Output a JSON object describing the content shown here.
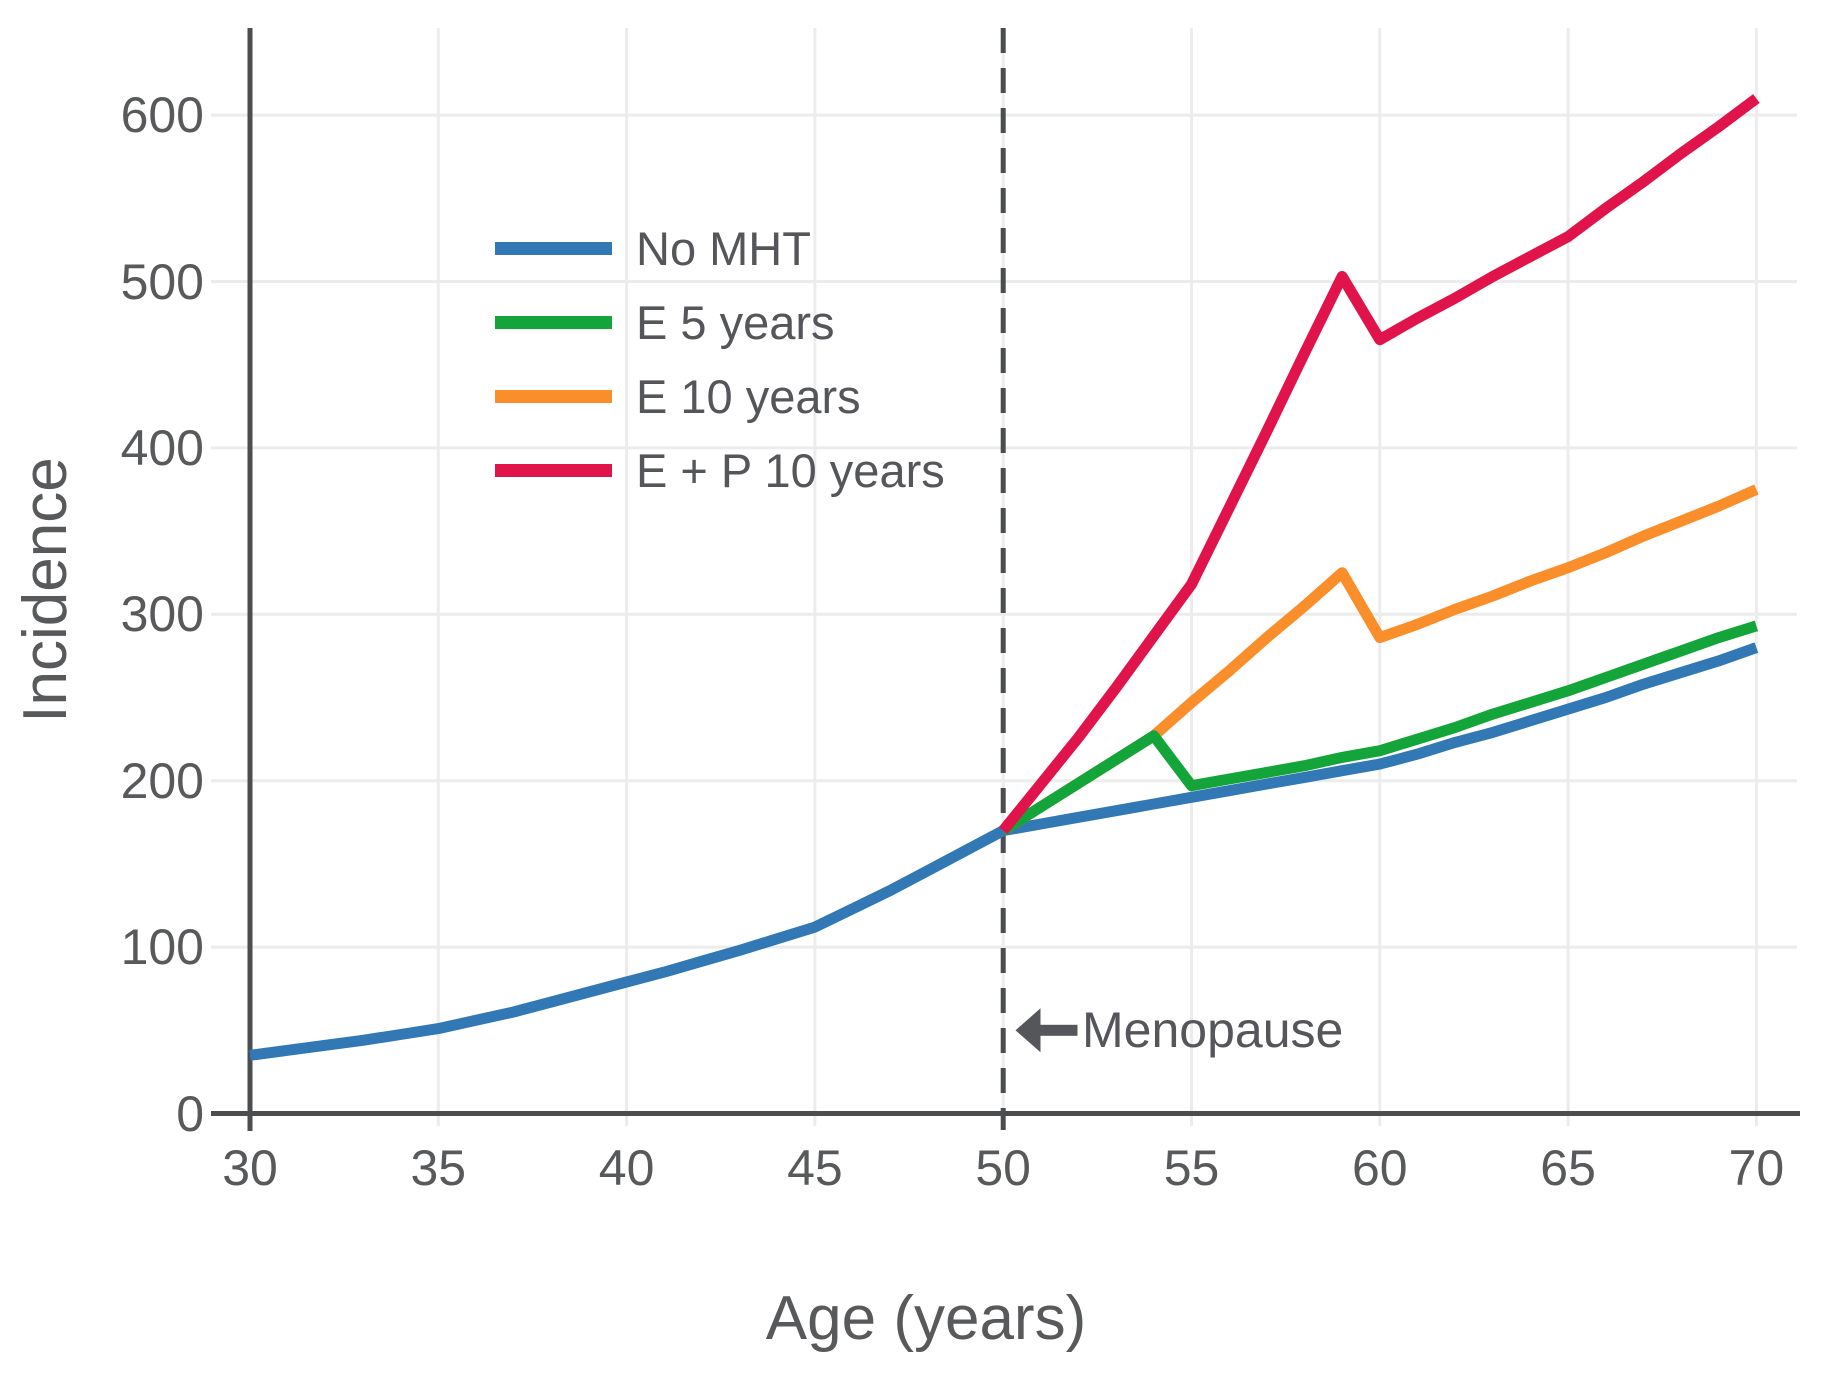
{
  "figure": {
    "background": "#ffffff",
    "text_color": "#58595b",
    "axis_color": "#4c4d4f",
    "grid_color": "#ececec",
    "annotation_color": "#55565a"
  },
  "chart_data": {
    "type": "line",
    "title": "",
    "xlabel": "Age (years)",
    "ylabel": "Incidence",
    "x_ticks": [
      30,
      35,
      40,
      45,
      50,
      55,
      60,
      65,
      70
    ],
    "y_ticks": [
      0,
      100,
      200,
      300,
      400,
      500,
      600
    ],
    "xlim": [
      30,
      71
    ],
    "ylim": [
      0,
      651
    ],
    "grid": true,
    "legend_position": "upper-left-inside",
    "menopause_line": {
      "x": 50,
      "style": "dashed"
    },
    "annotation": {
      "text": "Menopause",
      "arrow_direction": "left",
      "x": 50.3,
      "y": 50
    },
    "series": [
      {
        "name": "No MHT",
        "color": "#3178b5",
        "points": [
          [
            30,
            35
          ],
          [
            31,
            38
          ],
          [
            32,
            41
          ],
          [
            33,
            44
          ],
          [
            34,
            47.5
          ],
          [
            35,
            51
          ],
          [
            36,
            56
          ],
          [
            37,
            61
          ],
          [
            38,
            67
          ],
          [
            39,
            73
          ],
          [
            40,
            79
          ],
          [
            41,
            85
          ],
          [
            42,
            91.5
          ],
          [
            43,
            98
          ],
          [
            44,
            105
          ],
          [
            45,
            112
          ],
          [
            46,
            123
          ],
          [
            47,
            134
          ],
          [
            48,
            146
          ],
          [
            49,
            158
          ],
          [
            50,
            170
          ],
          [
            51,
            174
          ],
          [
            52,
            178
          ],
          [
            53,
            182
          ],
          [
            54,
            186
          ],
          [
            55,
            190
          ],
          [
            56,
            194
          ],
          [
            57,
            198
          ],
          [
            58,
            202
          ],
          [
            59,
            206
          ],
          [
            60,
            210
          ],
          [
            61,
            216
          ],
          [
            62,
            223
          ],
          [
            63,
            229
          ],
          [
            64,
            236
          ],
          [
            65,
            243
          ],
          [
            66,
            250
          ],
          [
            67,
            258
          ],
          [
            68,
            265
          ],
          [
            69,
            272
          ],
          [
            70,
            280
          ]
        ]
      },
      {
        "name": "E 5 years",
        "color": "#14a53a",
        "points": [
          [
            50,
            170
          ],
          [
            54,
            227
          ],
          [
            55,
            197
          ],
          [
            56,
            201
          ],
          [
            57,
            205
          ],
          [
            58,
            209
          ],
          [
            59,
            214
          ],
          [
            60,
            218
          ],
          [
            61,
            225
          ],
          [
            62,
            232
          ],
          [
            63,
            240
          ],
          [
            64,
            247
          ],
          [
            65,
            254
          ],
          [
            66,
            262
          ],
          [
            67,
            270
          ],
          [
            68,
            278
          ],
          [
            69,
            286
          ],
          [
            70,
            293
          ]
        ]
      },
      {
        "name": "E 10 years",
        "color": "#fa8e2a",
        "points": [
          [
            50,
            170
          ],
          [
            54,
            227
          ],
          [
            55,
            247
          ],
          [
            56,
            266
          ],
          [
            57,
            286
          ],
          [
            58,
            305
          ],
          [
            59,
            325
          ],
          [
            60,
            286
          ],
          [
            61,
            294
          ],
          [
            62,
            303
          ],
          [
            63,
            311
          ],
          [
            64,
            320
          ],
          [
            65,
            328
          ],
          [
            66,
            337
          ],
          [
            67,
            347
          ],
          [
            68,
            356
          ],
          [
            69,
            365
          ],
          [
            70,
            375
          ]
        ]
      },
      {
        "name": "E + P 10 years",
        "color": "#e0134a",
        "points": [
          [
            50,
            170
          ],
          [
            51,
            198
          ],
          [
            52,
            226
          ],
          [
            53,
            256
          ],
          [
            54,
            287
          ],
          [
            55,
            318
          ],
          [
            56,
            364
          ],
          [
            57,
            410
          ],
          [
            58,
            457
          ],
          [
            59,
            503
          ],
          [
            60,
            465
          ],
          [
            61,
            478
          ],
          [
            62,
            490
          ],
          [
            63,
            503
          ],
          [
            64,
            515
          ],
          [
            65,
            527
          ],
          [
            66,
            544
          ],
          [
            67,
            560
          ],
          [
            68,
            577
          ],
          [
            69,
            593
          ],
          [
            70,
            610
          ]
        ]
      }
    ]
  }
}
